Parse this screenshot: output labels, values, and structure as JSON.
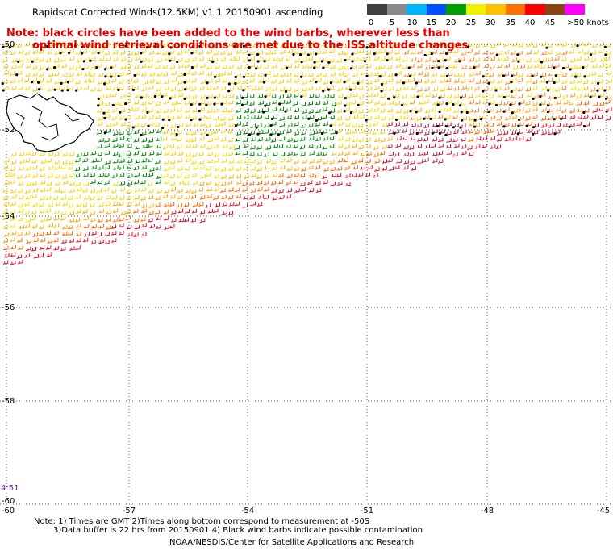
{
  "title": "Rapidscat Corrected Winds(12.5KM) v1.1 20150901 ascending",
  "note_line1": "Note: black circles have been added to the wind barbs, wherever less than",
  "note_line2": "optimal wind retrieval conditions are met due to the ISS altitude changes",
  "colorbar": {
    "segments": [
      "#404040",
      "#8a8a8a",
      "#00b4ff",
      "#0050ff",
      "#00a000",
      "#f0f000",
      "#ffc000",
      "#ff7000",
      "#ff0000",
      "#8b4513",
      "#ff00ff",
      "#7a00c0"
    ],
    "labels": [
      "0",
      "5",
      "10",
      "15",
      "20",
      "25",
      "30",
      "35",
      "40",
      "45",
      ">50 knots"
    ]
  },
  "y_labels": [
    "-50",
    "-52",
    "-54",
    "-56",
    "-58",
    "-60"
  ],
  "x_labels": [
    "-57",
    "-54",
    "-51",
    "-48",
    "-45"
  ],
  "corner_x_label": "-60",
  "time_label": "4:51",
  "footer": {
    "line1": "Note: 1) Times are GMT 2)Times along bottom correspond to measurement at -50S",
    "line2": "3)Data buffer is 22 hrs from 20150901 4) Black wind barbs indicate possible contamination",
    "line3": "NOAA/NESDIS/Center for Satellite Applications and Research"
  }
}
